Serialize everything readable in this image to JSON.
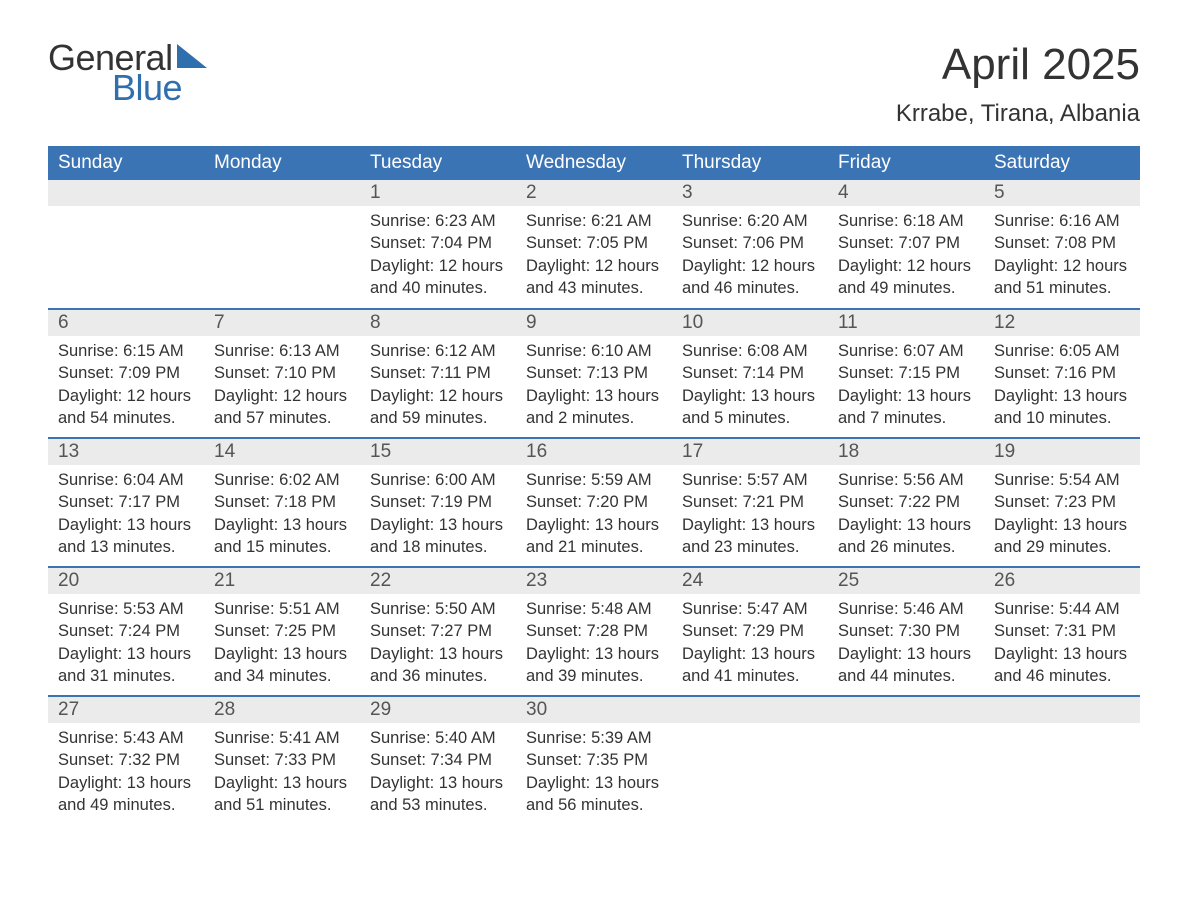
{
  "logo": {
    "text1": "General",
    "text2": "Blue",
    "flag_color": "#2f6fae"
  },
  "title": "April 2025",
  "location": "Krrabe, Tirana, Albania",
  "colors": {
    "header_bg": "#3b74b5",
    "header_text": "#ffffff",
    "daynum_bg": "#ebebeb",
    "daynum_border": "#3b74b5",
    "body_text": "#333333"
  },
  "weekdays": [
    "Sunday",
    "Monday",
    "Tuesday",
    "Wednesday",
    "Thursday",
    "Friday",
    "Saturday"
  ],
  "weeks": [
    [
      {
        "n": "",
        "sunrise": "",
        "sunset": "",
        "daylight": ""
      },
      {
        "n": "",
        "sunrise": "",
        "sunset": "",
        "daylight": ""
      },
      {
        "n": "1",
        "sunrise": "Sunrise: 6:23 AM",
        "sunset": "Sunset: 7:04 PM",
        "daylight": "Daylight: 12 hours and 40 minutes."
      },
      {
        "n": "2",
        "sunrise": "Sunrise: 6:21 AM",
        "sunset": "Sunset: 7:05 PM",
        "daylight": "Daylight: 12 hours and 43 minutes."
      },
      {
        "n": "3",
        "sunrise": "Sunrise: 6:20 AM",
        "sunset": "Sunset: 7:06 PM",
        "daylight": "Daylight: 12 hours and 46 minutes."
      },
      {
        "n": "4",
        "sunrise": "Sunrise: 6:18 AM",
        "sunset": "Sunset: 7:07 PM",
        "daylight": "Daylight: 12 hours and 49 minutes."
      },
      {
        "n": "5",
        "sunrise": "Sunrise: 6:16 AM",
        "sunset": "Sunset: 7:08 PM",
        "daylight": "Daylight: 12 hours and 51 minutes."
      }
    ],
    [
      {
        "n": "6",
        "sunrise": "Sunrise: 6:15 AM",
        "sunset": "Sunset: 7:09 PM",
        "daylight": "Daylight: 12 hours and 54 minutes."
      },
      {
        "n": "7",
        "sunrise": "Sunrise: 6:13 AM",
        "sunset": "Sunset: 7:10 PM",
        "daylight": "Daylight: 12 hours and 57 minutes."
      },
      {
        "n": "8",
        "sunrise": "Sunrise: 6:12 AM",
        "sunset": "Sunset: 7:11 PM",
        "daylight": "Daylight: 12 hours and 59 minutes."
      },
      {
        "n": "9",
        "sunrise": "Sunrise: 6:10 AM",
        "sunset": "Sunset: 7:13 PM",
        "daylight": "Daylight: 13 hours and 2 minutes."
      },
      {
        "n": "10",
        "sunrise": "Sunrise: 6:08 AM",
        "sunset": "Sunset: 7:14 PM",
        "daylight": "Daylight: 13 hours and 5 minutes."
      },
      {
        "n": "11",
        "sunrise": "Sunrise: 6:07 AM",
        "sunset": "Sunset: 7:15 PM",
        "daylight": "Daylight: 13 hours and 7 minutes."
      },
      {
        "n": "12",
        "sunrise": "Sunrise: 6:05 AM",
        "sunset": "Sunset: 7:16 PM",
        "daylight": "Daylight: 13 hours and 10 minutes."
      }
    ],
    [
      {
        "n": "13",
        "sunrise": "Sunrise: 6:04 AM",
        "sunset": "Sunset: 7:17 PM",
        "daylight": "Daylight: 13 hours and 13 minutes."
      },
      {
        "n": "14",
        "sunrise": "Sunrise: 6:02 AM",
        "sunset": "Sunset: 7:18 PM",
        "daylight": "Daylight: 13 hours and 15 minutes."
      },
      {
        "n": "15",
        "sunrise": "Sunrise: 6:00 AM",
        "sunset": "Sunset: 7:19 PM",
        "daylight": "Daylight: 13 hours and 18 minutes."
      },
      {
        "n": "16",
        "sunrise": "Sunrise: 5:59 AM",
        "sunset": "Sunset: 7:20 PM",
        "daylight": "Daylight: 13 hours and 21 minutes."
      },
      {
        "n": "17",
        "sunrise": "Sunrise: 5:57 AM",
        "sunset": "Sunset: 7:21 PM",
        "daylight": "Daylight: 13 hours and 23 minutes."
      },
      {
        "n": "18",
        "sunrise": "Sunrise: 5:56 AM",
        "sunset": "Sunset: 7:22 PM",
        "daylight": "Daylight: 13 hours and 26 minutes."
      },
      {
        "n": "19",
        "sunrise": "Sunrise: 5:54 AM",
        "sunset": "Sunset: 7:23 PM",
        "daylight": "Daylight: 13 hours and 29 minutes."
      }
    ],
    [
      {
        "n": "20",
        "sunrise": "Sunrise: 5:53 AM",
        "sunset": "Sunset: 7:24 PM",
        "daylight": "Daylight: 13 hours and 31 minutes."
      },
      {
        "n": "21",
        "sunrise": "Sunrise: 5:51 AM",
        "sunset": "Sunset: 7:25 PM",
        "daylight": "Daylight: 13 hours and 34 minutes."
      },
      {
        "n": "22",
        "sunrise": "Sunrise: 5:50 AM",
        "sunset": "Sunset: 7:27 PM",
        "daylight": "Daylight: 13 hours and 36 minutes."
      },
      {
        "n": "23",
        "sunrise": "Sunrise: 5:48 AM",
        "sunset": "Sunset: 7:28 PM",
        "daylight": "Daylight: 13 hours and 39 minutes."
      },
      {
        "n": "24",
        "sunrise": "Sunrise: 5:47 AM",
        "sunset": "Sunset: 7:29 PM",
        "daylight": "Daylight: 13 hours and 41 minutes."
      },
      {
        "n": "25",
        "sunrise": "Sunrise: 5:46 AM",
        "sunset": "Sunset: 7:30 PM",
        "daylight": "Daylight: 13 hours and 44 minutes."
      },
      {
        "n": "26",
        "sunrise": "Sunrise: 5:44 AM",
        "sunset": "Sunset: 7:31 PM",
        "daylight": "Daylight: 13 hours and 46 minutes."
      }
    ],
    [
      {
        "n": "27",
        "sunrise": "Sunrise: 5:43 AM",
        "sunset": "Sunset: 7:32 PM",
        "daylight": "Daylight: 13 hours and 49 minutes."
      },
      {
        "n": "28",
        "sunrise": "Sunrise: 5:41 AM",
        "sunset": "Sunset: 7:33 PM",
        "daylight": "Daylight: 13 hours and 51 minutes."
      },
      {
        "n": "29",
        "sunrise": "Sunrise: 5:40 AM",
        "sunset": "Sunset: 7:34 PM",
        "daylight": "Daylight: 13 hours and 53 minutes."
      },
      {
        "n": "30",
        "sunrise": "Sunrise: 5:39 AM",
        "sunset": "Sunset: 7:35 PM",
        "daylight": "Daylight: 13 hours and 56 minutes."
      },
      {
        "n": "",
        "sunrise": "",
        "sunset": "",
        "daylight": ""
      },
      {
        "n": "",
        "sunrise": "",
        "sunset": "",
        "daylight": ""
      },
      {
        "n": "",
        "sunrise": "",
        "sunset": "",
        "daylight": ""
      }
    ]
  ]
}
